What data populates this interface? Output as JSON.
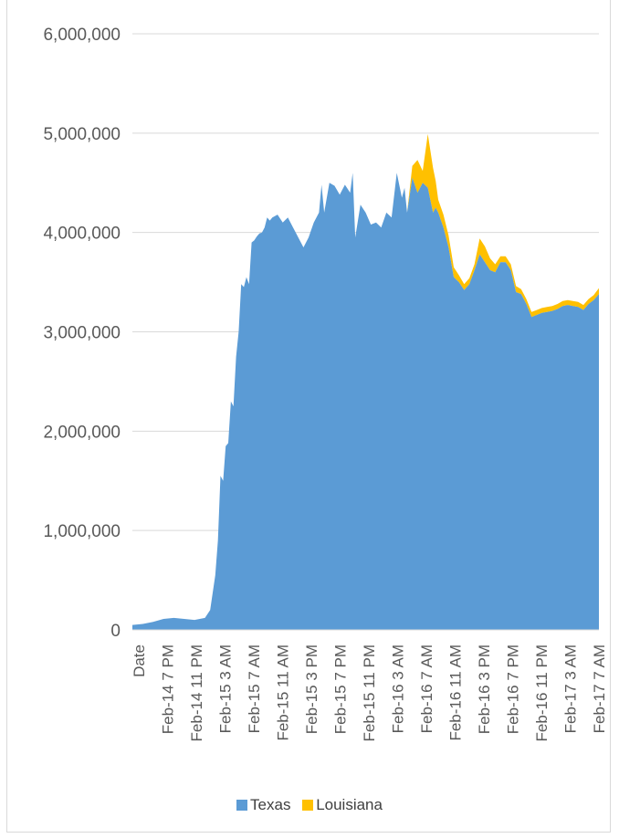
{
  "chart_data": {
    "type": "area",
    "title": "",
    "xlabel": "",
    "ylabel": "",
    "ylim": [
      0,
      6000000
    ],
    "y_ticks": [
      "0",
      "1,000,000",
      "2,000,000",
      "3,000,000",
      "4,000,000",
      "5,000,000",
      "6,000,000"
    ],
    "x_tick_labels": [
      "Date",
      "Feb-14 7 PM",
      "Feb-14 11 PM",
      "Feb-15 3 AM",
      "Feb-15 7 AM",
      "Feb-15 11 AM",
      "Feb-15 3 PM",
      "Feb-15 7 PM",
      "Feb-15 11 PM",
      "Feb-16 3 AM",
      "Feb-16 7 AM",
      "Feb-16 11 AM",
      "Feb-16 3 PM",
      "Feb-16 7 PM",
      "Feb-16 11 PM",
      "Feb-17 3 AM",
      "Feb-17 7 AM"
    ],
    "stacked": true,
    "grid": true,
    "legend_position": "bottom",
    "x_hours": [
      0,
      2,
      4,
      6,
      8,
      10,
      12,
      14,
      15,
      16,
      16.5,
      17,
      17.5,
      18,
      18.5,
      19,
      19.5,
      20,
      20.5,
      21,
      21.5,
      22,
      22.5,
      23,
      23.5,
      24,
      24.5,
      25,
      25.5,
      26,
      26.5,
      27,
      28,
      29,
      30,
      31,
      32,
      33,
      34,
      35,
      36,
      36.5,
      37,
      38,
      39,
      40,
      41,
      42,
      42.5,
      43,
      44,
      45,
      46,
      47,
      48,
      49,
      50,
      51,
      52,
      52.5,
      53,
      54,
      55,
      56,
      57,
      58,
      58.5,
      59,
      60,
      61,
      62,
      63,
      64,
      65,
      66,
      67,
      68,
      69,
      70,
      71,
      72,
      73,
      74,
      75,
      76,
      77,
      78,
      79,
      80,
      81,
      82,
      83,
      84,
      85,
      86,
      87,
      88,
      89,
      90
    ],
    "series": [
      {
        "name": "Texas",
        "color": "#5b9bd5",
        "values": [
          50000,
          60000,
          80000,
          110000,
          120000,
          110000,
          100000,
          120000,
          200000,
          550000,
          900000,
          1550000,
          1500000,
          1850000,
          1880000,
          2300000,
          2250000,
          2750000,
          3000000,
          3480000,
          3450000,
          3550000,
          3480000,
          3900000,
          3920000,
          3960000,
          3990000,
          4000000,
          4050000,
          4150000,
          4120000,
          4150000,
          4180000,
          4100000,
          4150000,
          4050000,
          3950000,
          3850000,
          3950000,
          4100000,
          4200000,
          4480000,
          4200000,
          4500000,
          4470000,
          4380000,
          4480000,
          4400000,
          4600000,
          3950000,
          4280000,
          4200000,
          4080000,
          4100000,
          4050000,
          4200000,
          4150000,
          4600000,
          4350000,
          4450000,
          4200000,
          4550000,
          4400000,
          4500000,
          4450000,
          4200000,
          4250000,
          4200000,
          4050000,
          3850000,
          3550000,
          3500000,
          3420000,
          3480000,
          3620000,
          3780000,
          3700000,
          3620000,
          3600000,
          3700000,
          3700000,
          3620000,
          3400000,
          3380000,
          3280000,
          3150000,
          3170000,
          3190000,
          3200000,
          3210000,
          3230000,
          3260000,
          3270000,
          3260000,
          3250000,
          3220000,
          3280000,
          3320000,
          3380000
        ]
      },
      {
        "name": "Louisiana",
        "color": "#ffc000",
        "values": [
          0,
          0,
          0,
          0,
          0,
          0,
          0,
          0,
          0,
          0,
          0,
          0,
          0,
          0,
          0,
          0,
          0,
          0,
          0,
          0,
          0,
          0,
          0,
          0,
          0,
          0,
          0,
          0,
          0,
          0,
          0,
          0,
          0,
          0,
          0,
          0,
          0,
          0,
          0,
          0,
          0,
          0,
          0,
          0,
          0,
          0,
          0,
          0,
          0,
          0,
          0,
          0,
          0,
          0,
          0,
          0,
          0,
          0,
          0,
          0,
          0,
          120000,
          330000,
          120000,
          540000,
          450000,
          270000,
          130000,
          130000,
          120000,
          100000,
          70000,
          60000,
          60000,
          60000,
          160000,
          160000,
          120000,
          80000,
          60000,
          60000,
          60000,
          60000,
          50000,
          50000,
          50000,
          50000,
          50000,
          50000,
          50000,
          50000,
          50000,
          50000,
          50000,
          50000,
          50000,
          50000,
          50000,
          60000
        ]
      }
    ]
  },
  "legend": {
    "texas": "Texas",
    "louisiana": "Louisiana"
  }
}
